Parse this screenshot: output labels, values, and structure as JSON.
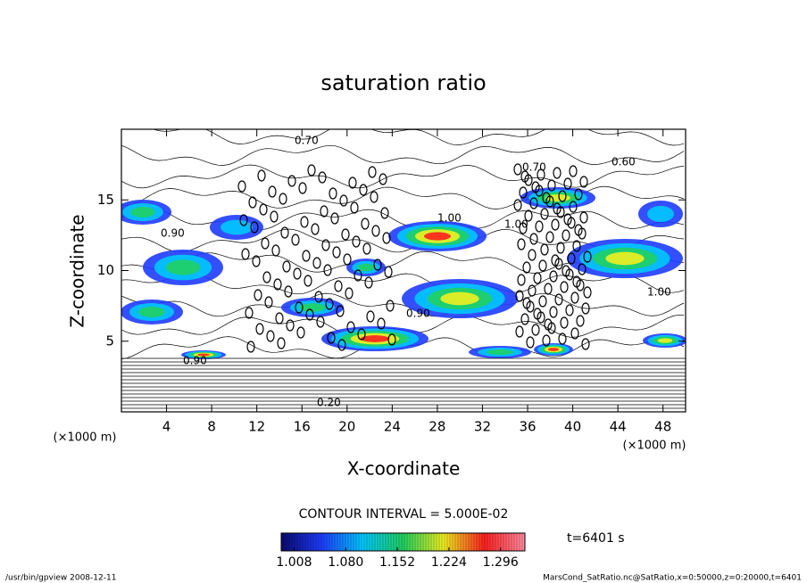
{
  "chart_data": {
    "type": "contour",
    "title": "saturation ratio",
    "x_label": "X-coordinate",
    "y_label": "Z-coordinate",
    "x_unit": "(×1000 m)",
    "y_unit": "(×1000 m)",
    "xlim": [
      0,
      50
    ],
    "xticks": [
      4,
      8,
      12,
      16,
      20,
      24,
      28,
      32,
      36,
      40,
      44,
      48
    ],
    "ylim": [
      0,
      20
    ],
    "yticks": [
      5,
      10,
      15
    ],
    "contour_interval": "CONTOUR INTERVAL = 5.000E-02",
    "contour_labels": [
      "0.70",
      "0.70",
      "0.60",
      "0.90",
      "1.00",
      "1.00",
      "0.90",
      "1.00",
      "0.90",
      "0.20"
    ],
    "colorbar": {
      "lim": [
        0.99,
        1.33
      ],
      "ticks": [
        {
          "value": 1.008,
          "label": "1.008"
        },
        {
          "value": 1.08,
          "label": "1.080"
        },
        {
          "value": 1.152,
          "label": "1.152"
        },
        {
          "value": 1.224,
          "label": "1.224"
        },
        {
          "value": 1.296,
          "label": "1.296"
        }
      ],
      "colors": [
        "#0a0a6e",
        "#1e3cff",
        "#00c8ff",
        "#20d060",
        "#f0f020",
        "#ff2020",
        "#ff8ca0"
      ]
    },
    "time": "t=6401 s",
    "footer_left": "/usr/bin/gpview   2008-12-11",
    "footer_right": "MarsCond_SatRatio.nc@SatRatio,x=0:50000,z=0:20000,t=6401"
  }
}
